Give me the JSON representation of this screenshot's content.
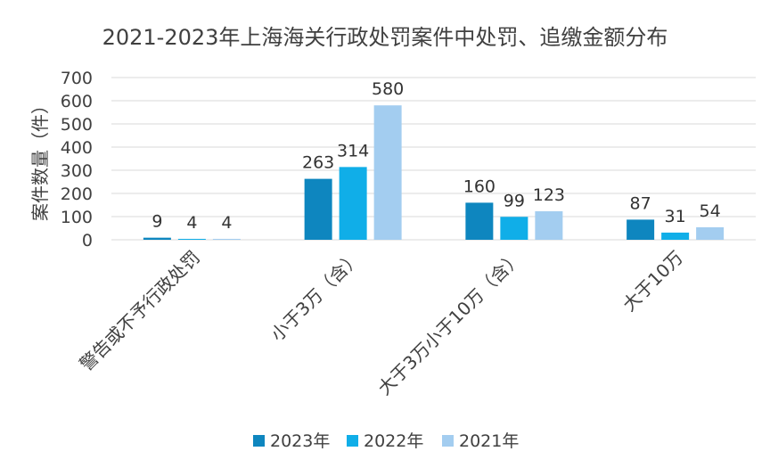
{
  "chart_data": {
    "type": "bar",
    "title": "2021-2023年上海海关行政处罚案件中处罚、追缴金额分布",
    "ylabel": "案件数量（件）",
    "xlabel": "",
    "ylim": [
      0,
      700
    ],
    "yticks": [
      0,
      100,
      200,
      300,
      400,
      500,
      600,
      700
    ],
    "grid": true,
    "legend_position": "bottom",
    "categories": [
      "警告或不予行政处罚",
      "小于3万（含）",
      "大于3万小于10万（含）",
      "大于10万"
    ],
    "series": [
      {
        "name": "2023年",
        "color": "#0e86bf",
        "values": [
          9,
          263,
          160,
          87
        ]
      },
      {
        "name": "2022年",
        "color": "#10aee8",
        "values": [
          4,
          314,
          99,
          31
        ]
      },
      {
        "name": "2021年",
        "color": "#a3cdf0",
        "values": [
          4,
          580,
          123,
          54
        ]
      }
    ]
  }
}
